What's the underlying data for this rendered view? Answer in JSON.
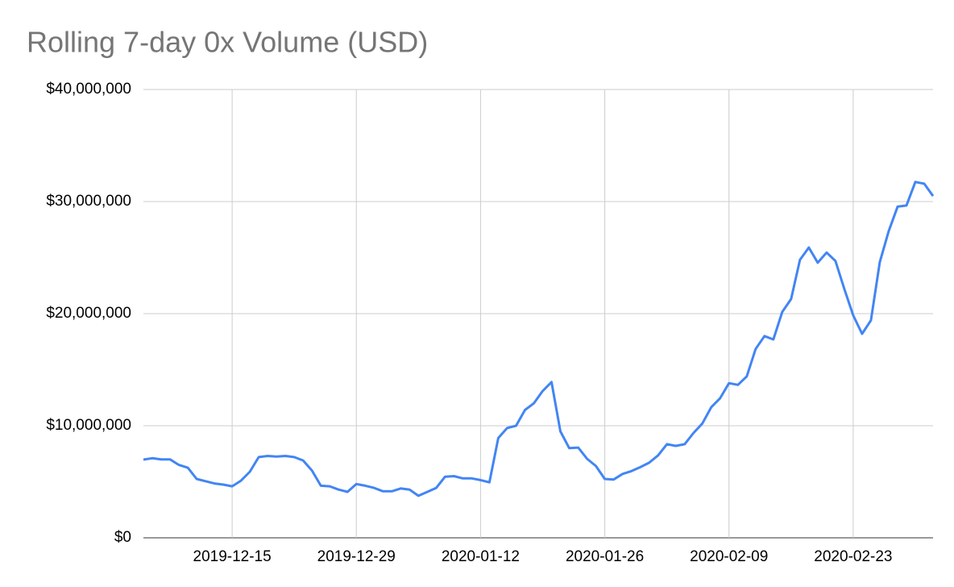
{
  "chart_data": {
    "type": "line",
    "title": "Rolling 7-day 0x Volume (USD)",
    "x": [
      "2019-12-05",
      "2019-12-06",
      "2019-12-07",
      "2019-12-08",
      "2019-12-09",
      "2019-12-10",
      "2019-12-11",
      "2019-12-12",
      "2019-12-13",
      "2019-12-14",
      "2019-12-15",
      "2019-12-16",
      "2019-12-17",
      "2019-12-18",
      "2019-12-19",
      "2019-12-20",
      "2019-12-21",
      "2019-12-22",
      "2019-12-23",
      "2019-12-24",
      "2019-12-25",
      "2019-12-26",
      "2019-12-27",
      "2019-12-28",
      "2019-12-29",
      "2019-12-30",
      "2019-12-31",
      "2020-01-01",
      "2020-01-02",
      "2020-01-03",
      "2020-01-04",
      "2020-01-05",
      "2020-01-06",
      "2020-01-07",
      "2020-01-08",
      "2020-01-09",
      "2020-01-10",
      "2020-01-11",
      "2020-01-12",
      "2020-01-13",
      "2020-01-14",
      "2020-01-15",
      "2020-01-16",
      "2020-01-17",
      "2020-01-18",
      "2020-01-19",
      "2020-01-20",
      "2020-01-21",
      "2020-01-22",
      "2020-01-23",
      "2020-01-24",
      "2020-01-25",
      "2020-01-26",
      "2020-01-27",
      "2020-01-28",
      "2020-01-29",
      "2020-01-30",
      "2020-01-31",
      "2020-02-01",
      "2020-02-02",
      "2020-02-03",
      "2020-02-04",
      "2020-02-05",
      "2020-02-06",
      "2020-02-07",
      "2020-02-08",
      "2020-02-09",
      "2020-02-10",
      "2020-02-11",
      "2020-02-12",
      "2020-02-13",
      "2020-02-14",
      "2020-02-15",
      "2020-02-16",
      "2020-02-17",
      "2020-02-18",
      "2020-02-19",
      "2020-02-20",
      "2020-02-21",
      "2020-02-22",
      "2020-02-23",
      "2020-02-24",
      "2020-02-25",
      "2020-02-26",
      "2020-02-27",
      "2020-02-28",
      "2020-02-29",
      "2020-03-01",
      "2020-03-02",
      "2020-03-03"
    ],
    "series": [
      {
        "name": "Rolling 7-day 0x Volume (USD)",
        "color": "#4285f4",
        "values": [
          6980000,
          7100000,
          7000000,
          7000000,
          6500000,
          6250000,
          5250000,
          5050000,
          4850000,
          4750000,
          4600000,
          5100000,
          5900000,
          7200000,
          7300000,
          7250000,
          7300000,
          7200000,
          6900000,
          6000000,
          4650000,
          4600000,
          4300000,
          4100000,
          4800000,
          4650000,
          4450000,
          4150000,
          4150000,
          4400000,
          4300000,
          3750000,
          4100000,
          4450000,
          5450000,
          5500000,
          5300000,
          5300000,
          5150000,
          4950000,
          8900000,
          9800000,
          10000000,
          11400000,
          12000000,
          13100000,
          13900000,
          9500000,
          8000000,
          8050000,
          7050000,
          6400000,
          5250000,
          5200000,
          5700000,
          5950000,
          6300000,
          6700000,
          7350000,
          8350000,
          8200000,
          8350000,
          9350000,
          10200000,
          11650000,
          12450000,
          13800000,
          13650000,
          14400000,
          16850000,
          18000000,
          17700000,
          20150000,
          21300000,
          24800000,
          25900000,
          24550000,
          25450000,
          24700000,
          22200000,
          19850000,
          18200000,
          19400000,
          24600000,
          27350000,
          29550000,
          29650000,
          31750000,
          31600000,
          30500000
        ]
      }
    ],
    "xlim": [
      "2019-12-05",
      "2020-03-03"
    ],
    "xticks": [
      "2019-12-15",
      "2019-12-29",
      "2020-01-12",
      "2020-01-26",
      "2020-02-09",
      "2020-02-23"
    ],
    "ylim": [
      0,
      40000000
    ],
    "yticks": [
      {
        "value": 0,
        "label": "$0"
      },
      {
        "value": 10000000,
        "label": "$10,000,000"
      },
      {
        "value": 20000000,
        "label": "$20,000,000"
      },
      {
        "value": 30000000,
        "label": "$30,000,000"
      },
      {
        "value": 40000000,
        "label": "$40,000,000"
      }
    ],
    "grid": true
  }
}
